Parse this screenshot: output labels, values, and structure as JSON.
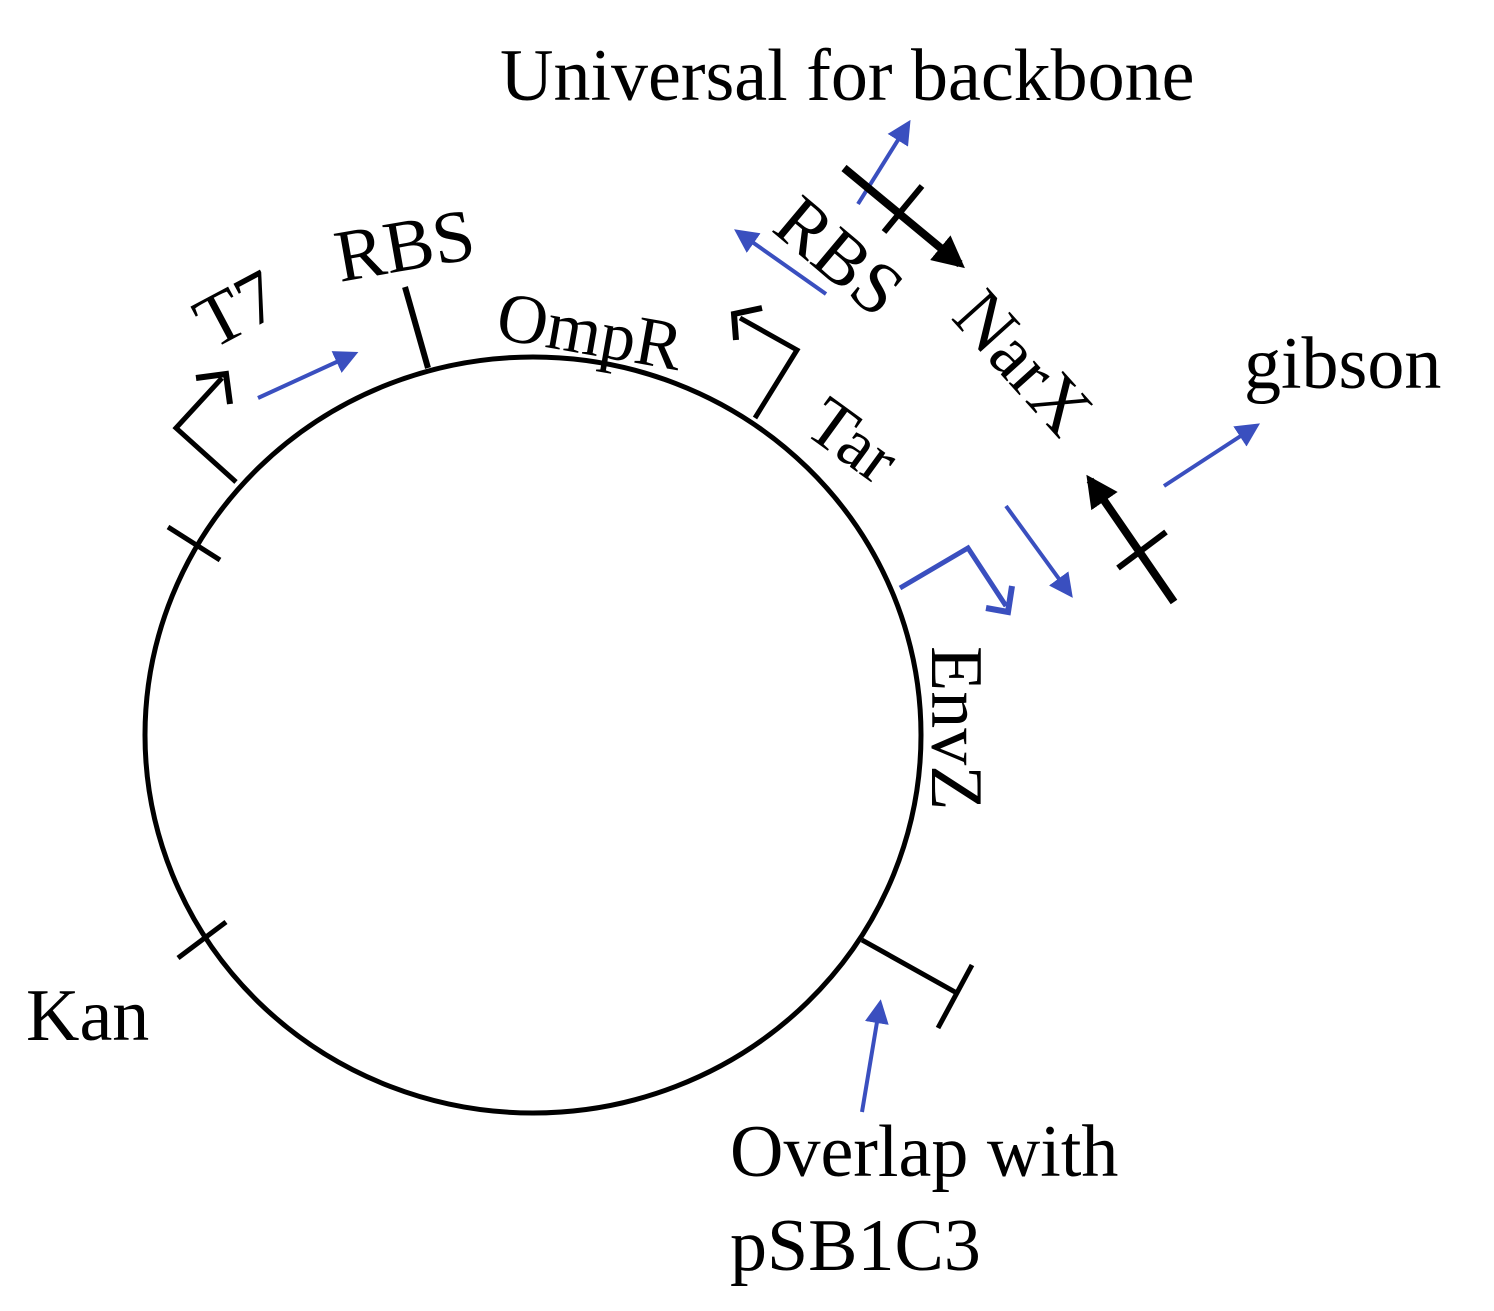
{
  "colors": {
    "line": "#000000",
    "primer": "#3a4fbf",
    "background": "#ffffff"
  },
  "plasmid": {
    "parts": {
      "t7": "T7",
      "rbs": "RBS",
      "ompr": "OmpR",
      "tar": "Tar",
      "envz": "EnvZ",
      "kan": "Kan"
    }
  },
  "insert": {
    "rbs": "RBS",
    "narx": "NarX"
  },
  "annotations": {
    "universal": "Universal for backbone",
    "gibson": "gibson",
    "overlap_line1": "Overlap with",
    "overlap_line2": "pSB1C3"
  }
}
